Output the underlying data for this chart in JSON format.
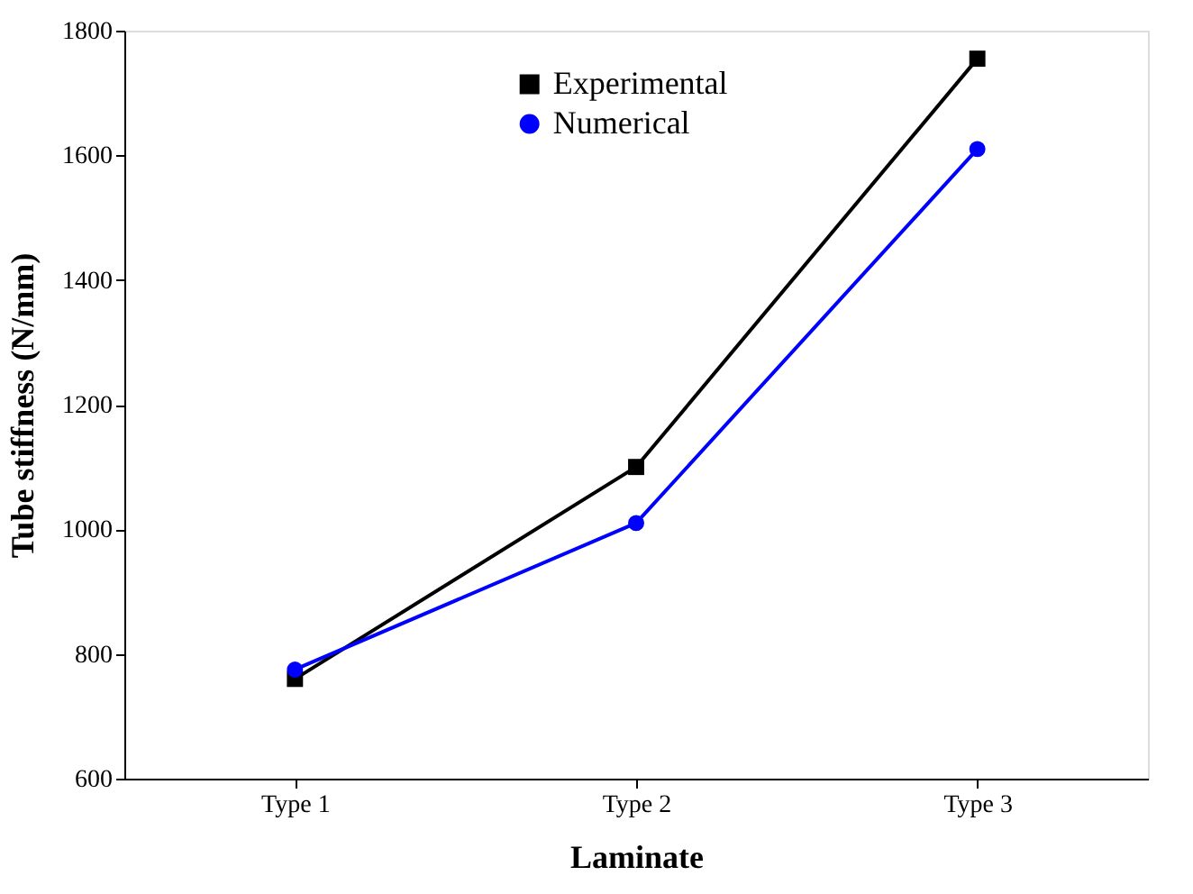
{
  "chart_data": {
    "type": "line",
    "xlabel": "Laminate",
    "ylabel": "Tube stiffness (N/mm)",
    "categories": [
      "Type 1",
      "Type 2",
      "Type 3"
    ],
    "series": [
      {
        "name": "Experimental",
        "color": "#000000",
        "marker": "square",
        "values": [
          760,
          1100,
          1755
        ]
      },
      {
        "name": "Numerical",
        "color": "#0000ff",
        "marker": "circle",
        "values": [
          775,
          1010,
          1610
        ]
      }
    ],
    "ylim": [
      600,
      1800
    ],
    "yticks": [
      600,
      800,
      1000,
      1200,
      1400,
      1600,
      1800
    ],
    "grid": false,
    "legend": "top",
    "line_style": "solid"
  }
}
